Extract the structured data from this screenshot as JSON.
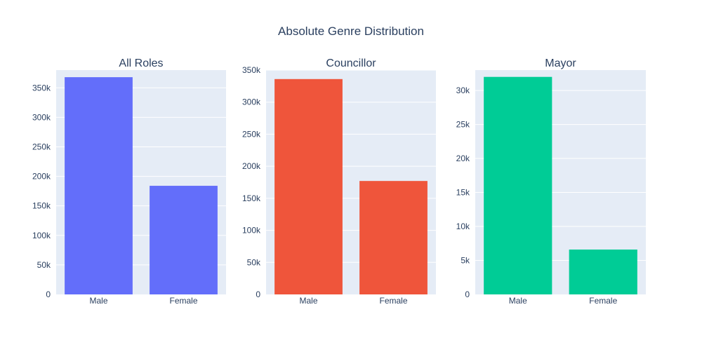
{
  "figure": {
    "title": "Absolute Genre Distribution"
  },
  "chart_data": [
    {
      "type": "bar",
      "title": "All Roles",
      "categories": [
        "Male",
        "Female"
      ],
      "values": [
        368000,
        184000
      ],
      "color": "#636efa",
      "ylim": [
        0,
        380000
      ],
      "ytick_values": [
        0,
        50000,
        100000,
        150000,
        200000,
        250000,
        300000,
        350000
      ],
      "ytick_labels": [
        "0",
        "50k",
        "100k",
        "150k",
        "200k",
        "250k",
        "300k",
        "350k"
      ],
      "grid": true
    },
    {
      "type": "bar",
      "title": "Councillor",
      "categories": [
        "Male",
        "Female"
      ],
      "values": [
        336000,
        177000
      ],
      "color": "#ef553b",
      "ylim": [
        0,
        350000
      ],
      "ytick_values": [
        0,
        50000,
        100000,
        150000,
        200000,
        250000,
        300000,
        350000
      ],
      "ytick_labels": [
        "0",
        "50k",
        "100k",
        "150k",
        "200k",
        "250k",
        "300k",
        "350k"
      ],
      "grid": true
    },
    {
      "type": "bar",
      "title": "Mayor",
      "categories": [
        "Male",
        "Female"
      ],
      "values": [
        32000,
        6600
      ],
      "color": "#00cc96",
      "ylim": [
        0,
        33000
      ],
      "ytick_values": [
        0,
        5000,
        10000,
        15000,
        20000,
        25000,
        30000
      ],
      "ytick_labels": [
        "0",
        "5k",
        "10k",
        "15k",
        "20k",
        "25k",
        "30k"
      ],
      "grid": true
    }
  ]
}
